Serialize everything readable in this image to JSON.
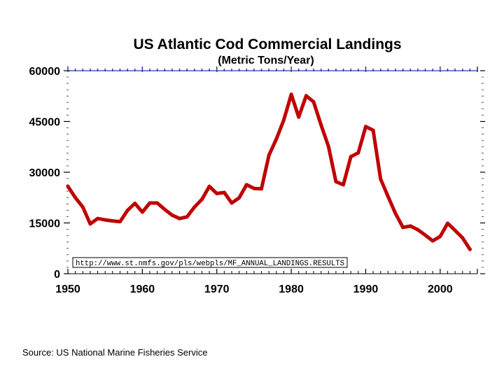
{
  "chart_data": {
    "type": "line",
    "title": "US Atlantic Cod Commercial Landings",
    "subtitle": "(Metric Tons/Year)",
    "xlabel": "",
    "ylabel": "",
    "xlim": [
      1950,
      2005
    ],
    "ylim": [
      0,
      60000
    ],
    "x_ticks": [
      1950,
      1960,
      1970,
      1980,
      1990,
      2000
    ],
    "y_ticks": [
      0,
      15000,
      30000,
      45000,
      60000
    ],
    "line_color": "#c00000",
    "axis_color": "#1f3fa0",
    "annotation": "http://www.st.nmfs.gov/pls/webpls/MF_ANNUAL_LANDINGS.RESULTS",
    "series": [
      {
        "name": "Landings",
        "x": [
          1950,
          1951,
          1952,
          1953,
          1954,
          1955,
          1956,
          1957,
          1958,
          1959,
          1960,
          1961,
          1962,
          1963,
          1964,
          1965,
          1966,
          1967,
          1968,
          1969,
          1970,
          1971,
          1972,
          1973,
          1974,
          1975,
          1976,
          1977,
          1978,
          1979,
          1980,
          1981,
          1982,
          1983,
          1984,
          1985,
          1986,
          1987,
          1988,
          1989,
          1990,
          1991,
          1992,
          1993,
          1994,
          1995,
          1996,
          1997,
          1998,
          1999,
          2000,
          2001,
          2002,
          2003,
          2004
        ],
        "values": [
          25800,
          22500,
          19700,
          14700,
          16300,
          15900,
          15600,
          15400,
          18700,
          20800,
          18200,
          20900,
          20900,
          19000,
          17300,
          16300,
          16800,
          19700,
          22000,
          25800,
          23700,
          24000,
          20900,
          22400,
          26300,
          25200,
          25100,
          35000,
          39800,
          45500,
          53000,
          46300,
          52600,
          50800,
          44000,
          37600,
          27200,
          26300,
          34600,
          35700,
          43500,
          42400,
          28000,
          22800,
          17800,
          13700,
          14100,
          13000,
          11400,
          9700,
          11000,
          14900,
          12800,
          10600,
          7200
        ]
      }
    ]
  },
  "footer": {
    "source": "Source:  US National Marine Fisheries Service"
  }
}
